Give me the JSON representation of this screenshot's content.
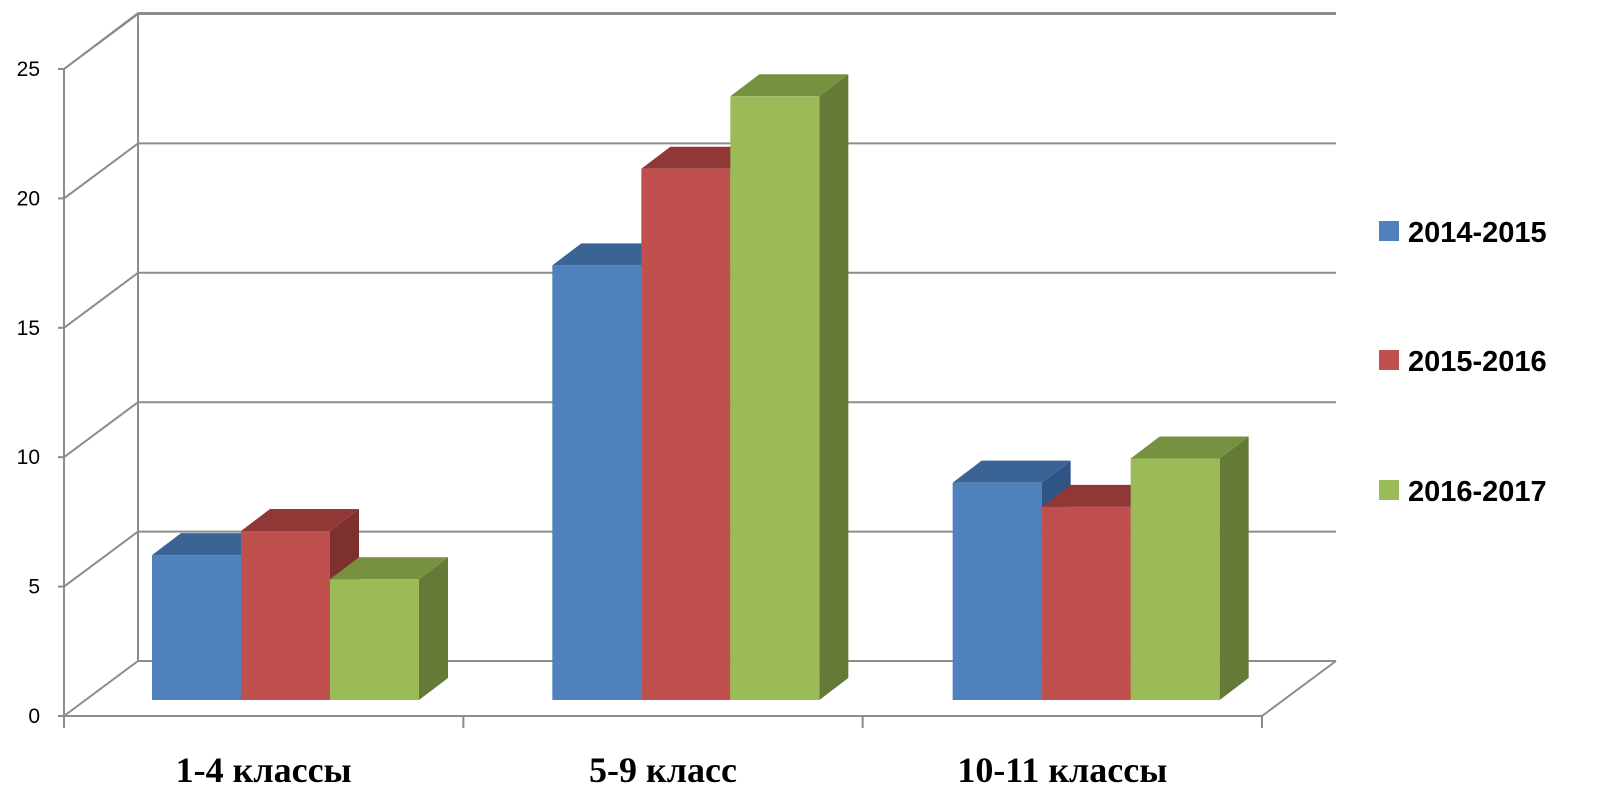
{
  "chart_data": {
    "type": "bar",
    "style": "3d-clustered-column",
    "categories": [
      "1-4 классы",
      "5-9 класс",
      "10-11 классы"
    ],
    "series": [
      {
        "name": "2014-2015",
        "values": [
          6,
          18,
          9
        ],
        "color": "#4F81BD",
        "top_color": "#3A6496",
        "side_color": "#2F5587"
      },
      {
        "name": "2015-2016",
        "values": [
          7,
          22,
          8
        ],
        "color": "#C0504D",
        "top_color": "#8F3836",
        "side_color": "#7E302E"
      },
      {
        "name": "2016-2017",
        "values": [
          5,
          25,
          10
        ],
        "color": "#9BBB59",
        "top_color": "#76913F",
        "side_color": "#667A38"
      }
    ],
    "y_ticks": [
      "0",
      "5",
      "10",
      "15",
      "20",
      "25"
    ],
    "ylim": [
      0,
      27
    ],
    "grid": true,
    "legend_position": "right",
    "title": "",
    "xlabel": "",
    "ylabel": ""
  }
}
